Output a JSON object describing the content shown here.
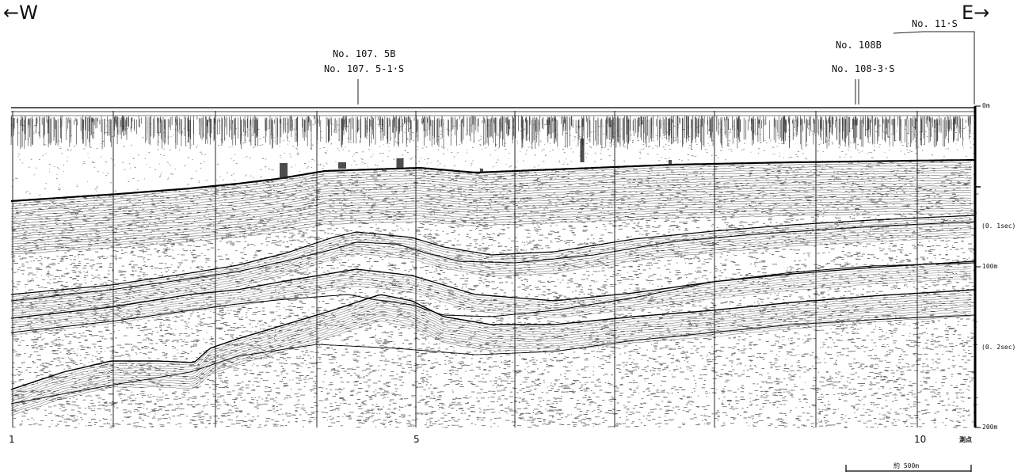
{
  "directions": {
    "west": "←W",
    "east": "E→"
  },
  "boreholes": {
    "b1075_a": "No. 107. 5B",
    "b1075_b": "No. 107. 5-1·S",
    "b108_a": "No. 108B",
    "b108_b": "No. 108-3·S",
    "b11": "No. 11·S"
  },
  "depth_axis": {
    "top": "0m",
    "t01": "(0. 1sec)",
    "d100": "100m",
    "t02": "(0. 2sec)",
    "d200": "200m"
  },
  "stations": {
    "s1": "1",
    "s5": "5",
    "s10": "10",
    "unit": "測点"
  },
  "scale_bar": {
    "label": "約 500m"
  },
  "colors": {
    "ink": "#111111",
    "paper": "#ffffff"
  }
}
